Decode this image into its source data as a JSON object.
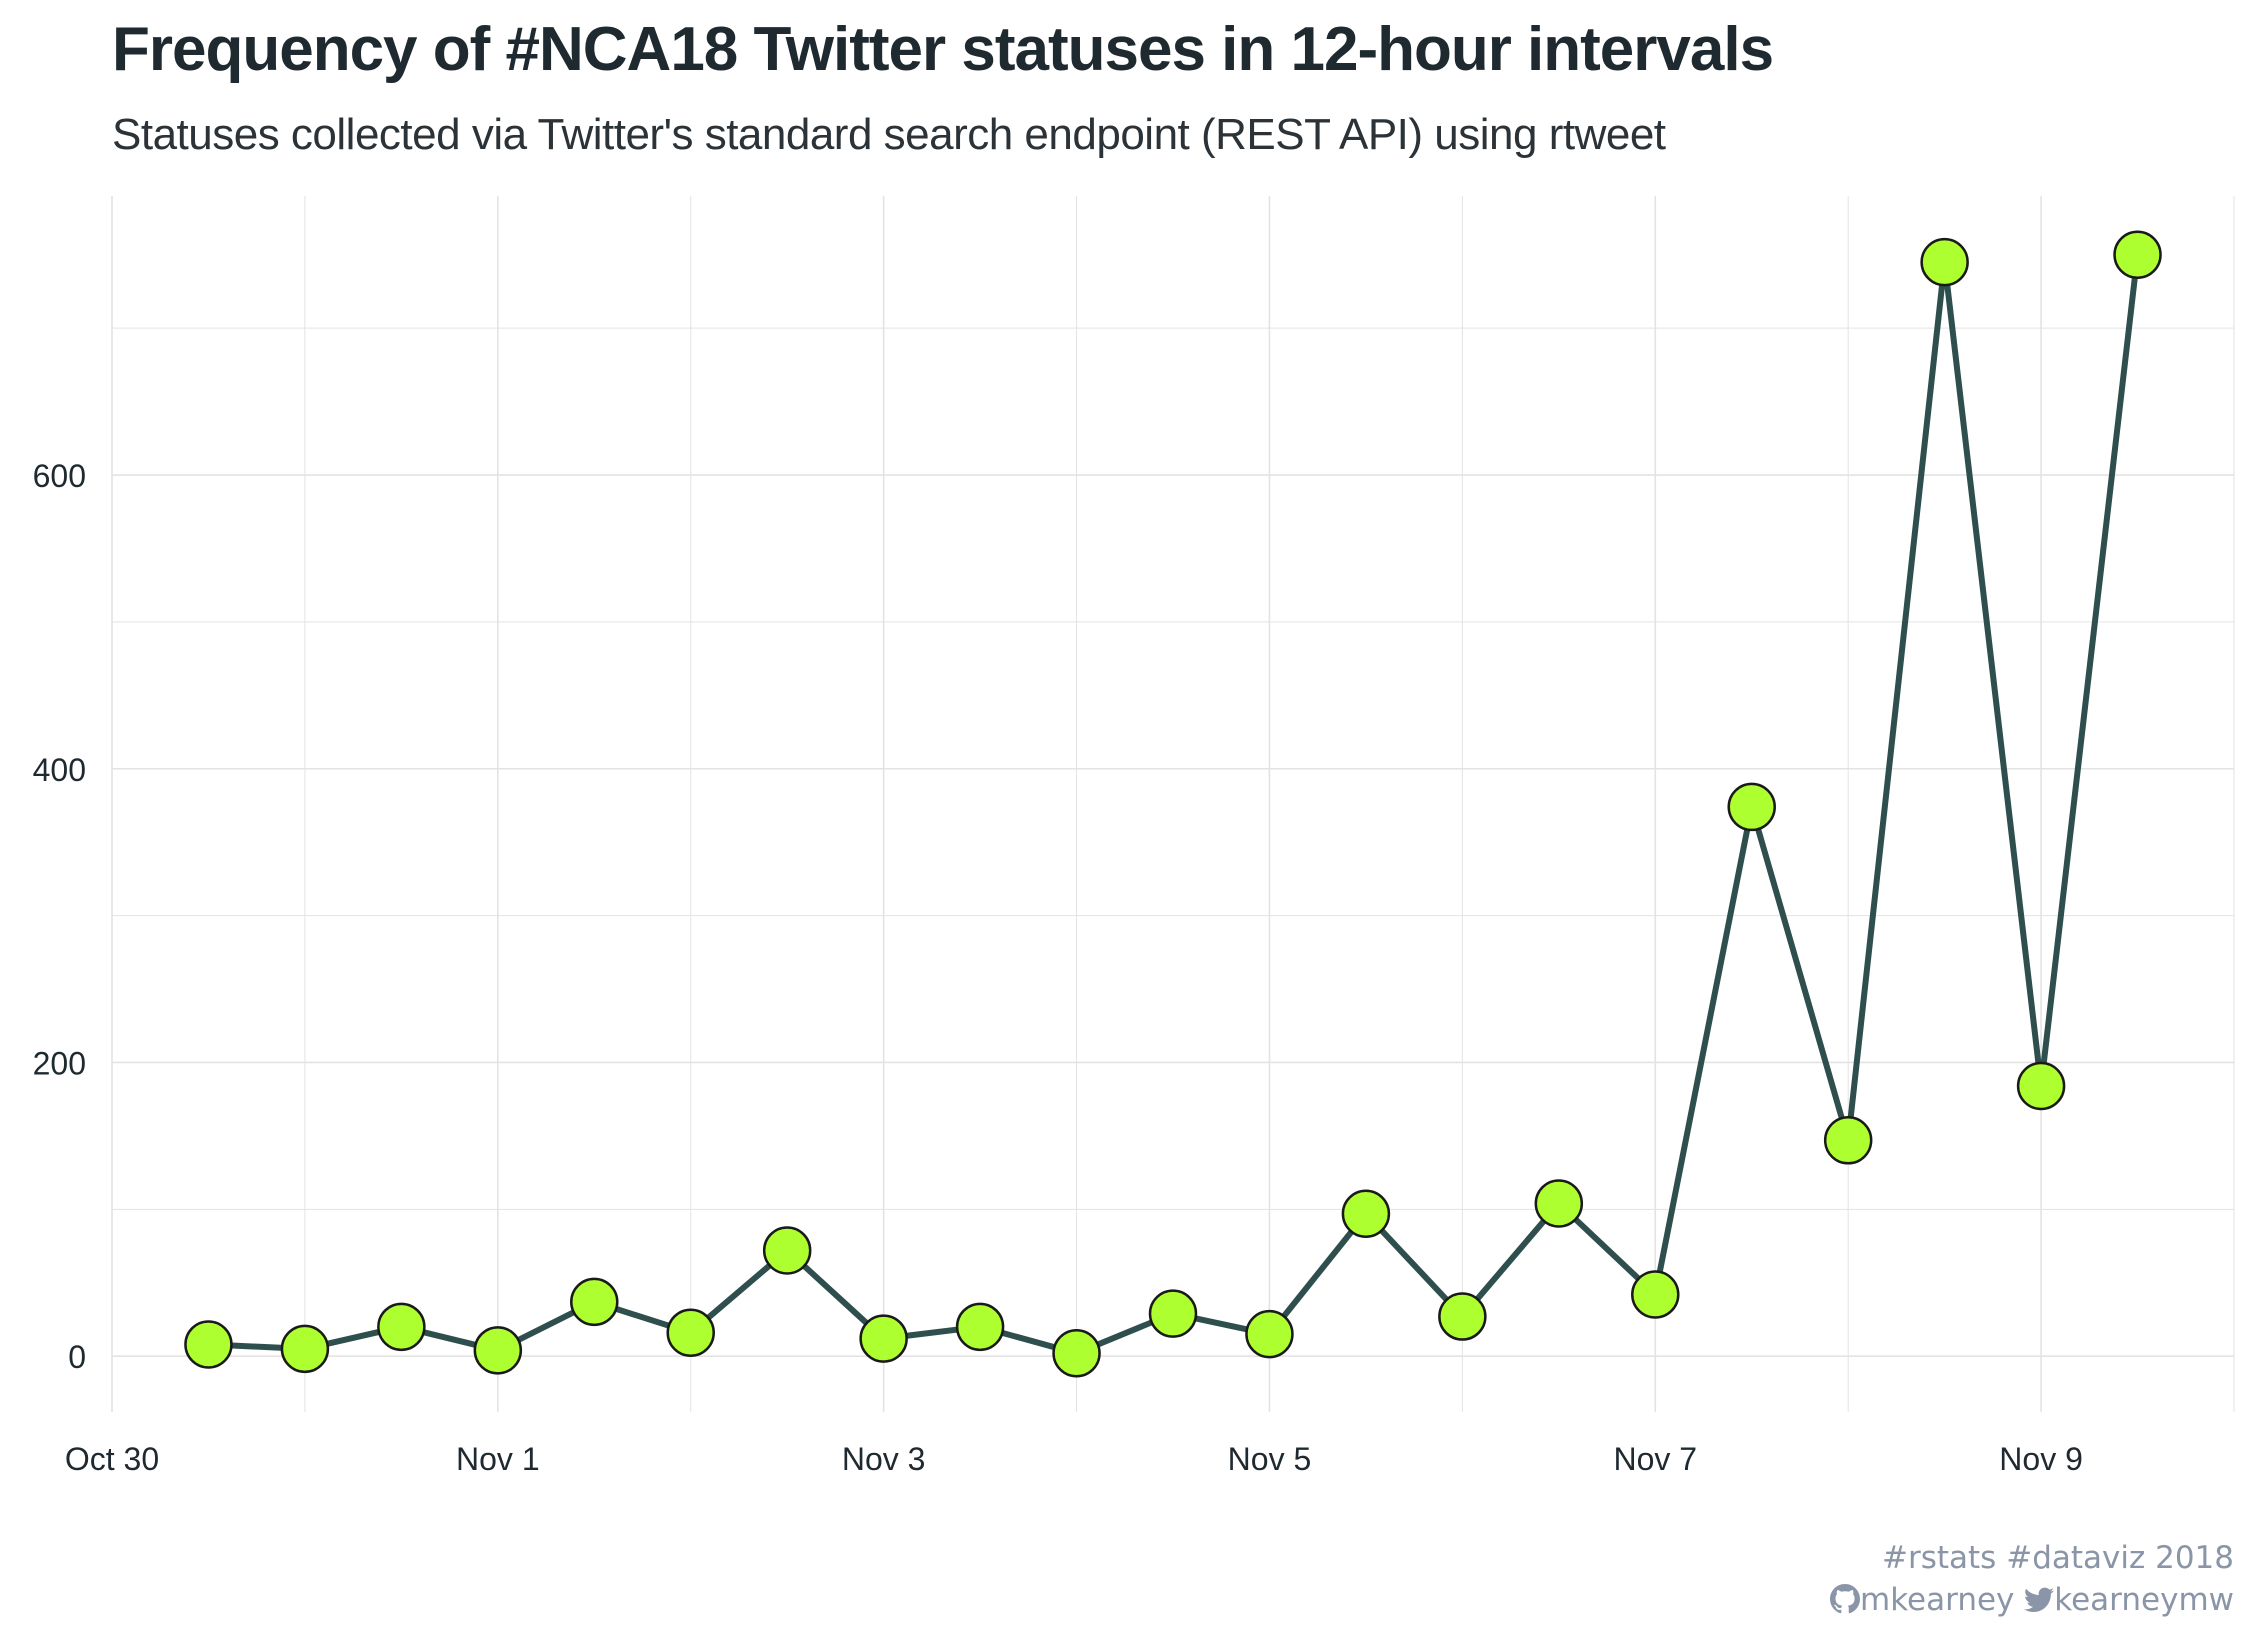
{
  "title": "Frequency of #NCA18 Twitter statuses in 12-hour intervals",
  "subtitle": "Statuses collected via Twitter's standard search endpoint (REST API) using rtweet",
  "caption": {
    "line1_parts": [
      "rstats",
      "dataviz 2018"
    ],
    "line2_parts": [
      "mkearney",
      "kearneymw"
    ],
    "icons": [
      "hashtag-icon",
      "hashtag-icon",
      "github-icon",
      "twitter-icon"
    ]
  },
  "colors": {
    "line": "#2f4f4f",
    "point_fill": "#adff2f",
    "point_stroke": "#1a1a1a",
    "grid": "#e3e3e3",
    "text": "#1f2a30",
    "caption": "#8a95a8"
  },
  "chart_data": {
    "type": "line",
    "title": "Frequency of #NCA18 Twitter statuses in 12-hour intervals",
    "subtitle": "Statuses collected via Twitter's standard search endpoint (REST API) using rtweet",
    "xlabel": "",
    "ylabel": "",
    "x_tick_labels": [
      "Oct 30",
      "Nov 1",
      "Nov 3",
      "Nov 5",
      "Nov 7",
      "Nov 9"
    ],
    "y_tick_labels": [
      "0",
      "200",
      "400",
      "600"
    ],
    "y_ticks": [
      0,
      200,
      400,
      600
    ],
    "ylim": [
      -38,
      790
    ],
    "xlim": [
      "2018-10-30 00:00",
      "2018-11-10 00:00"
    ],
    "grid": true,
    "series": [
      {
        "x": [
          "2018-10-30 12:00",
          "2018-10-31 00:00",
          "2018-10-31 12:00",
          "2018-11-01 00:00",
          "2018-11-01 12:00",
          "2018-11-02 00:00",
          "2018-11-02 12:00",
          "2018-11-03 00:00",
          "2018-11-03 12:00",
          "2018-11-04 00:00",
          "2018-11-04 12:00",
          "2018-11-05 00:00",
          "2018-11-05 12:00",
          "2018-11-06 00:00",
          "2018-11-06 12:00",
          "2018-11-07 00:00",
          "2018-11-07 12:00",
          "2018-11-08 00:00",
          "2018-11-08 12:00",
          "2018-11-09 00:00",
          "2018-11-09 12:00"
        ],
        "values": [
          8,
          5,
          20,
          4,
          37,
          16,
          72,
          12,
          20,
          2,
          29,
          15,
          97,
          27,
          104,
          42,
          374,
          147,
          745,
          184,
          750
        ]
      }
    ]
  }
}
